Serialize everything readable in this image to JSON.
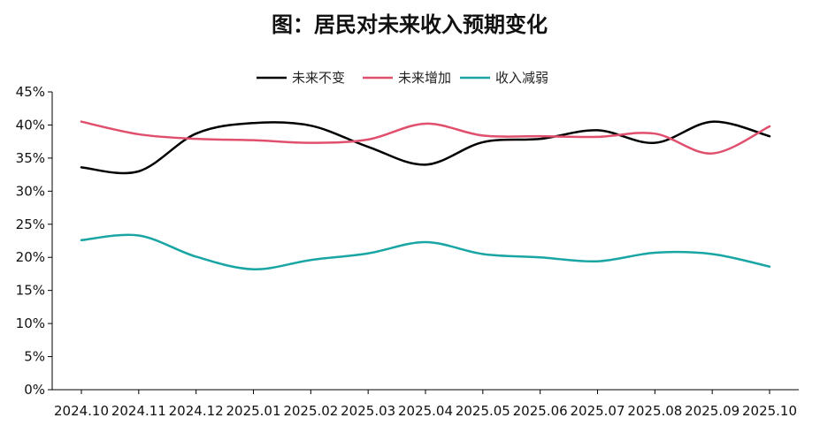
{
  "chart_data": {
    "type": "line",
    "title": "图：居民对未来收入预期变化",
    "xlabel": "",
    "ylabel": "",
    "categories": [
      "2024.10",
      "2024.11",
      "2024.12",
      "2025.01",
      "2025.02",
      "2025.03",
      "2025.04",
      "2025.05",
      "2025.06",
      "2025.07",
      "2025.08",
      "2025.09",
      "2025.10"
    ],
    "y_ticks": [
      "0%",
      "5%",
      "10%",
      "15%",
      "20%",
      "25%",
      "30%",
      "35%",
      "40%",
      "45%"
    ],
    "ylim": [
      0,
      45
    ],
    "unit": "%",
    "legend_position": "top-center",
    "grid": false,
    "smooth": true,
    "series": [
      {
        "name": "未来不变",
        "color": "#000000",
        "values": [
          33.6,
          33.0,
          38.7,
          40.3,
          39.9,
          36.7,
          34.0,
          37.4,
          37.9,
          39.2,
          37.3,
          40.5,
          38.3
        ]
      },
      {
        "name": "未来增加",
        "color": "#e0506e",
        "values": [
          40.5,
          38.6,
          37.9,
          37.7,
          37.3,
          37.8,
          40.2,
          38.4,
          38.3,
          38.2,
          38.7,
          35.7,
          39.8
        ]
      },
      {
        "name": "收入减弱",
        "color": "#1aa5a5",
        "values": [
          22.6,
          23.3,
          20.1,
          18.2,
          19.6,
          20.6,
          22.3,
          20.5,
          20.0,
          19.4,
          20.7,
          20.5,
          18.6
        ]
      }
    ]
  }
}
